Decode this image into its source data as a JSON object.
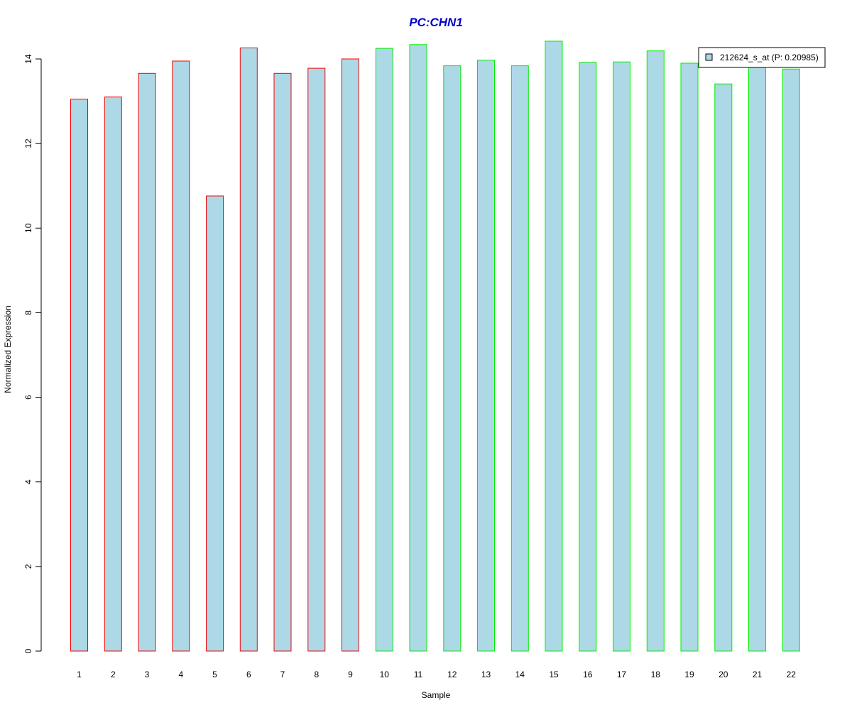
{
  "chart_data": {
    "type": "bar",
    "title": "PC:CHN1",
    "xlabel": "Sample",
    "ylabel": "Normalized Expression",
    "categories": [
      "1",
      "2",
      "3",
      "4",
      "5",
      "6",
      "7",
      "8",
      "9",
      "10",
      "11",
      "12",
      "13",
      "14",
      "15",
      "16",
      "17",
      "18",
      "19",
      "20",
      "21",
      "22"
    ],
    "series": [
      {
        "name": "212624_s_at (P: 0.20985)",
        "values": [
          13.05,
          13.1,
          13.66,
          13.95,
          10.76,
          14.26,
          13.66,
          13.78,
          14.0,
          14.25,
          14.34,
          13.84,
          13.97,
          13.84,
          14.42,
          13.92,
          13.93,
          14.19,
          13.9,
          13.41,
          13.85,
          13.76
        ]
      }
    ],
    "group_colors": [
      "#ff0000",
      "#ff0000",
      "#ff0000",
      "#ff0000",
      "#ff0000",
      "#ff0000",
      "#ff0000",
      "#ff0000",
      "#ff0000",
      "#00ee00",
      "#00ee00",
      "#00ee00",
      "#00ee00",
      "#00ee00",
      "#00ee00",
      "#00ee00",
      "#00ee00",
      "#00ee00",
      "#00ee00",
      "#00ee00",
      "#00ee00",
      "#00ee00"
    ],
    "bar_fill": "#add8e6",
    "title_color": "#0000cd",
    "yticks": [
      0,
      2,
      4,
      6,
      8,
      10,
      12,
      14
    ],
    "ylim": [
      0,
      14.5
    ],
    "grid": false,
    "legend_position": "top-right"
  }
}
